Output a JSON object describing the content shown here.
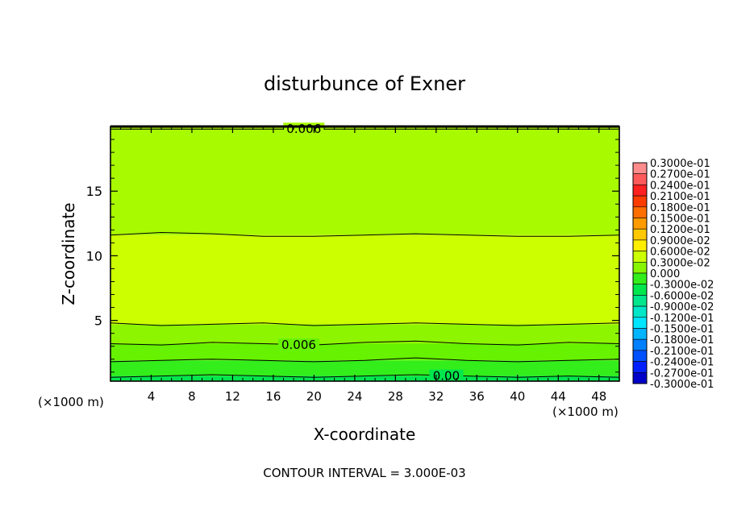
{
  "chart_data": {
    "type": "heatmap",
    "subtype": "filled-contour",
    "title": "disturbunce of Exner",
    "xlabel": "X-coordinate",
    "ylabel": "Z-coordinate",
    "x_unit_left": "(×1000 m)",
    "x_unit_right": "(×1000 m)",
    "footer": "CONTOUR INTERVAL = 3.000E-03",
    "xlim": [
      0,
      50
    ],
    "ylim": [
      0.3,
      20
    ],
    "x_ticks": [
      4,
      8,
      12,
      16,
      20,
      24,
      28,
      32,
      36,
      40,
      44,
      48
    ],
    "y_ticks": [
      5,
      10,
      15
    ],
    "contour_lines": [
      {
        "level": 0.006,
        "label": "0.006",
        "y": [
          19.8,
          19.8,
          19.8,
          19.8,
          19.8,
          19.8,
          19.8,
          19.8,
          19.8,
          19.8,
          19.8
        ]
      },
      {
        "level": 0.009,
        "label": "",
        "y": [
          11.6,
          11.8,
          11.7,
          11.5,
          11.5,
          11.6,
          11.7,
          11.6,
          11.5,
          11.5,
          11.6
        ]
      },
      {
        "level": 0.009,
        "label": "",
        "y": [
          4.8,
          4.6,
          4.7,
          4.8,
          4.6,
          4.7,
          4.8,
          4.7,
          4.6,
          4.7,
          4.8
        ]
      },
      {
        "level": 0.006,
        "label": "0.006",
        "y": [
          3.2,
          3.1,
          3.3,
          3.2,
          3.1,
          3.3,
          3.4,
          3.2,
          3.1,
          3.3,
          3.2
        ]
      },
      {
        "level": 0.003,
        "label": "",
        "y": [
          1.8,
          1.9,
          2.0,
          1.9,
          1.8,
          1.9,
          2.1,
          1.9,
          1.8,
          1.9,
          2.0
        ]
      },
      {
        "level": 0.0,
        "label": "0.00",
        "y": [
          0.6,
          0.7,
          0.8,
          0.7,
          0.6,
          0.7,
          0.8,
          0.7,
          0.6,
          0.7,
          0.6
        ]
      }
    ],
    "fill_bands": [
      {
        "z_min": 0.3,
        "z_max": 0.7,
        "color": "#00e64d"
      },
      {
        "z_min": 0.7,
        "z_max": 1.9,
        "color": "#33ee1a"
      },
      {
        "z_min": 1.9,
        "z_max": 3.2,
        "color": "#66f200"
      },
      {
        "z_min": 3.2,
        "z_max": 4.7,
        "color": "#8ef500"
      },
      {
        "z_min": 4.7,
        "z_max": 11.6,
        "color": "#ccff00"
      },
      {
        "z_min": 11.6,
        "z_max": 20,
        "color": "#a8fa00"
      }
    ],
    "legend": {
      "placement": "right",
      "entries": [
        {
          "label": "0.3000e-01",
          "color": "#ff8c8c"
        },
        {
          "label": "0.2700e-01",
          "color": "#ff5a5a"
        },
        {
          "label": "0.2400e-01",
          "color": "#ff2020"
        },
        {
          "label": "0.2100e-01",
          "color": "#ff3c00"
        },
        {
          "label": "0.1800e-01",
          "color": "#ff6e00"
        },
        {
          "label": "0.1500e-01",
          "color": "#ff9a00"
        },
        {
          "label": "0.1200e-01",
          "color": "#ffc800"
        },
        {
          "label": "0.9000e-02",
          "color": "#ffee00"
        },
        {
          "label": "0.6000e-02",
          "color": "#ccff00"
        },
        {
          "label": "0.3000e-02",
          "color": "#88f500"
        },
        {
          "label": "0.000",
          "color": "#33ee1a"
        },
        {
          "label": "-0.3000e-02",
          "color": "#00e64d"
        },
        {
          "label": "-0.6000e-02",
          "color": "#00e68c"
        },
        {
          "label": "-0.9000e-02",
          "color": "#00e6c8"
        },
        {
          "label": "-0.1200e-01",
          "color": "#00e6ff"
        },
        {
          "label": "-0.1500e-01",
          "color": "#00b4ff"
        },
        {
          "label": "-0.1800e-01",
          "color": "#0080ff"
        },
        {
          "label": "-0.2100e-01",
          "color": "#0050ff"
        },
        {
          "label": "-0.2400e-01",
          "color": "#0020ff"
        },
        {
          "label": "-0.2700e-01",
          "color": "#0000c8"
        },
        {
          "label": "-0.3000e-01",
          "color": "#5a1ea0"
        }
      ]
    }
  }
}
